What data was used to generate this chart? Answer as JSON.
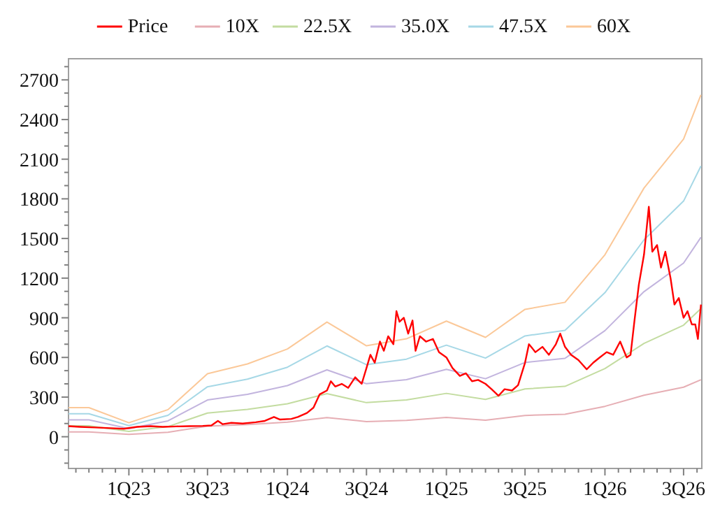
{
  "chart_data": {
    "type": "line",
    "legend": "top",
    "grid": false,
    "line_style": "solid",
    "marker": "none",
    "xlim": [
      "2022-08-15",
      "2026-08-12"
    ],
    "ylim": [
      -240,
      2860
    ],
    "xticks": [
      {
        "value": "2022-09-01",
        "label": null
      },
      {
        "value": "2022-10-01",
        "label": null
      },
      {
        "value": "2022-11-01",
        "label": null
      },
      {
        "value": "2022-12-01",
        "label": null
      },
      {
        "value": "2023-01-01",
        "label": "1Q23"
      },
      {
        "value": "2023-02-01",
        "label": null
      },
      {
        "value": "2023-03-01",
        "label": null
      },
      {
        "value": "2023-04-01",
        "label": null
      },
      {
        "value": "2023-05-01",
        "label": null
      },
      {
        "value": "2023-06-01",
        "label": null
      },
      {
        "value": "2023-07-01",
        "label": "3Q23"
      },
      {
        "value": "2023-08-01",
        "label": null
      },
      {
        "value": "2023-09-01",
        "label": null
      },
      {
        "value": "2023-10-01",
        "label": null
      },
      {
        "value": "2023-11-01",
        "label": null
      },
      {
        "value": "2023-12-01",
        "label": null
      },
      {
        "value": "2024-01-01",
        "label": "1Q24"
      },
      {
        "value": "2024-02-01",
        "label": null
      },
      {
        "value": "2024-03-01",
        "label": null
      },
      {
        "value": "2024-04-01",
        "label": null
      },
      {
        "value": "2024-05-01",
        "label": null
      },
      {
        "value": "2024-06-01",
        "label": null
      },
      {
        "value": "2024-07-01",
        "label": "3Q24"
      },
      {
        "value": "2024-08-01",
        "label": null
      },
      {
        "value": "2024-09-01",
        "label": null
      },
      {
        "value": "2024-10-01",
        "label": null
      },
      {
        "value": "2024-11-01",
        "label": null
      },
      {
        "value": "2024-12-01",
        "label": null
      },
      {
        "value": "2025-01-01",
        "label": "1Q25"
      },
      {
        "value": "2025-02-01",
        "label": null
      },
      {
        "value": "2025-03-01",
        "label": null
      },
      {
        "value": "2025-04-01",
        "label": null
      },
      {
        "value": "2025-05-01",
        "label": null
      },
      {
        "value": "2025-06-01",
        "label": null
      },
      {
        "value": "2025-07-01",
        "label": "3Q25"
      },
      {
        "value": "2025-08-01",
        "label": null
      },
      {
        "value": "2025-09-01",
        "label": null
      },
      {
        "value": "2025-10-01",
        "label": null
      },
      {
        "value": "2025-11-01",
        "label": null
      },
      {
        "value": "2025-12-01",
        "label": null
      },
      {
        "value": "2026-01-01",
        "label": "1Q26"
      },
      {
        "value": "2026-02-01",
        "label": null
      },
      {
        "value": "2026-03-01",
        "label": null
      },
      {
        "value": "2026-04-01",
        "label": null
      },
      {
        "value": "2026-05-01",
        "label": null
      },
      {
        "value": "2026-06-01",
        "label": null
      },
      {
        "value": "2026-07-01",
        "label": "3Q26"
      },
      {
        "value": "2026-08-01",
        "label": null
      }
    ],
    "yticks": [
      {
        "value": -200,
        "label": null
      },
      {
        "value": -100,
        "label": null
      },
      0,
      {
        "value": 100,
        "label": null
      },
      {
        "value": 200,
        "label": null
      },
      300,
      {
        "value": 400,
        "label": null
      },
      {
        "value": 500,
        "label": null
      },
      600,
      {
        "value": 700,
        "label": null
      },
      {
        "value": 800,
        "label": null
      },
      900,
      {
        "value": 1000,
        "label": null
      },
      {
        "value": 1100,
        "label": null
      },
      1200,
      {
        "value": 1300,
        "label": null
      },
      {
        "value": 1400,
        "label": null
      },
      1500,
      {
        "value": 1600,
        "label": null
      },
      {
        "value": 1700,
        "label": null
      },
      1800,
      {
        "value": 1900,
        "label": null
      },
      {
        "value": 2000,
        "label": null
      },
      2100,
      {
        "value": 2200,
        "label": null
      },
      {
        "value": 2300,
        "label": null
      },
      2400,
      {
        "value": 2500,
        "label": null
      },
      {
        "value": 2600,
        "label": null
      },
      2700,
      {
        "value": 2800,
        "label": null
      }
    ],
    "x": [
      "2022-08-15",
      "2022-10-01",
      "2023-01-01",
      "2023-04-01",
      "2023-07-01",
      "2023-10-01",
      "2024-01-01",
      "2024-04-01",
      "2024-07-01",
      "2024-10-01",
      "2025-01-01",
      "2025-04-01",
      "2025-07-01",
      "2025-10-01",
      "2026-01-01",
      "2026-04-01",
      "2026-07-01",
      "2026-08-10"
    ],
    "series": [
      {
        "name": "Price",
        "color": "#ff0000",
        "x": [
          "2022-08-15",
          "2022-09-10",
          "2022-10-15",
          "2022-11-20",
          "2022-12-20",
          "2023-01-20",
          "2023-02-20",
          "2023-03-20",
          "2023-04-20",
          "2023-05-20",
          "2023-06-20",
          "2023-07-10",
          "2023-07-25",
          "2023-08-05",
          "2023-08-25",
          "2023-09-20",
          "2023-10-20",
          "2023-11-10",
          "2023-12-01",
          "2023-12-15",
          "2024-01-10",
          "2024-01-25",
          "2024-02-15",
          "2024-03-01",
          "2024-03-15",
          "2024-04-01",
          "2024-04-10",
          "2024-04-20",
          "2024-05-05",
          "2024-05-20",
          "2024-06-05",
          "2024-06-20",
          "2024-07-01",
          "2024-07-10",
          "2024-07-20",
          "2024-08-01",
          "2024-08-10",
          "2024-08-20",
          "2024-09-01",
          "2024-09-08",
          "2024-09-15",
          "2024-09-25",
          "2024-10-05",
          "2024-10-15",
          "2024-10-22",
          "2024-11-01",
          "2024-11-15",
          "2024-12-01",
          "2024-12-15",
          "2025-01-01",
          "2025-01-15",
          "2025-02-01",
          "2025-02-15",
          "2025-03-01",
          "2025-03-15",
          "2025-04-01",
          "2025-04-15",
          "2025-05-01",
          "2025-05-15",
          "2025-06-01",
          "2025-06-15",
          "2025-07-01",
          "2025-07-10",
          "2025-07-25",
          "2025-08-10",
          "2025-08-25",
          "2025-09-10",
          "2025-09-20",
          "2025-10-01",
          "2025-10-15",
          "2025-11-01",
          "2025-11-20",
          "2025-12-05",
          "2025-12-20",
          "2026-01-05",
          "2026-01-20",
          "2026-02-05",
          "2026-02-20",
          "2026-03-01",
          "2026-03-10",
          "2026-03-20",
          "2026-04-01",
          "2026-04-12",
          "2026-04-20",
          "2026-05-01",
          "2026-05-10",
          "2026-05-20",
          "2026-06-01",
          "2026-06-10",
          "2026-06-20",
          "2026-07-01",
          "2026-07-10",
          "2026-07-20",
          "2026-07-28",
          "2026-08-03",
          "2026-08-10"
        ],
        "values": [
          80,
          75,
          70,
          65,
          60,
          75,
          80,
          75,
          78,
          80,
          82,
          85,
          120,
          95,
          105,
          100,
          110,
          120,
          150,
          130,
          135,
          150,
          180,
          220,
          320,
          350,
          420,
          380,
          400,
          370,
          450,
          400,
          520,
          620,
          560,
          720,
          650,
          760,
          700,
          950,
          870,
          900,
          780,
          880,
          650,
          760,
          720,
          740,
          640,
          600,
          520,
          460,
          480,
          420,
          430,
          400,
          360,
          310,
          360,
          350,
          390,
          560,
          700,
          640,
          680,
          620,
          700,
          780,
          680,
          620,
          580,
          510,
          560,
          600,
          640,
          620,
          720,
          600,
          620,
          880,
          1150,
          1380,
          1740,
          1400,
          1450,
          1280,
          1400,
          1200,
          1000,
          1050,
          900,
          950,
          850,
          850,
          740,
          1000
        ]
      },
      {
        "name": "10X",
        "color": "#e6aeb4",
        "values": [
          37,
          37,
          18,
          34,
          80,
          92,
          111,
          145,
          115,
          124,
          146,
          125,
          161,
          170,
          230,
          314,
          375,
          431
        ]
      },
      {
        "name": "22.5X",
        "color": "#c3dca0",
        "values": [
          83,
          83,
          40,
          77,
          179,
          207,
          249,
          326,
          258,
          278,
          328,
          282,
          362,
          381,
          516,
          706,
          844,
          970
        ]
      },
      {
        "name": "35.0X",
        "color": "#c2b4de",
        "values": [
          128,
          128,
          62,
          120,
          278,
          321,
          387,
          506,
          401,
          432,
          510,
          439,
          562,
          593,
          803,
          1098,
          1314,
          1509
        ]
      },
      {
        "name": "47.5X",
        "color": "#a6d8e6",
        "values": [
          174,
          174,
          84,
          162,
          378,
          436,
          526,
          687,
          545,
          587,
          693,
          595,
          763,
          805,
          1090,
          1490,
          1783,
          2048
        ]
      },
      {
        "name": "60X",
        "color": "#fbc898",
        "values": [
          220,
          220,
          106,
          205,
          477,
          551,
          664,
          868,
          688,
          741,
          875,
          752,
          964,
          1017,
          1377,
          1882,
          2252,
          2587
        ]
      }
    ]
  }
}
